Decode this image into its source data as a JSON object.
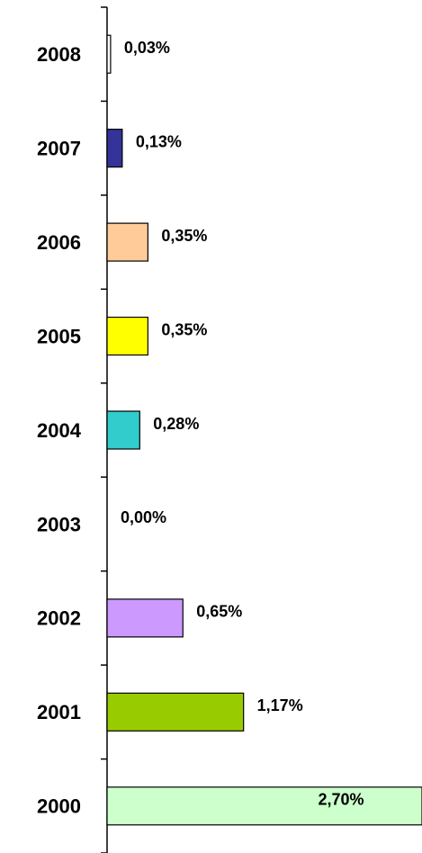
{
  "chart_data": {
    "type": "hbar",
    "categories": [
      "2008",
      "2007",
      "2006",
      "2005",
      "2004",
      "2003",
      "2002",
      "2001",
      "2000"
    ],
    "values": [
      0.03,
      0.13,
      0.35,
      0.35,
      0.28,
      0,
      0.65,
      1.17,
      2.7
    ],
    "value_labels": [
      "0,03%",
      "0,13%",
      "0,35%",
      "0,35%",
      "0,28%",
      "0,00%",
      "0,65%",
      "1,17%",
      "2,70%"
    ],
    "colors": [
      "#ffffff",
      "#333399",
      "#ffcc99",
      "#ffff00",
      "#33cccc",
      "#ffffff",
      "#cc99ff",
      "#99cc00",
      "#ccffcc"
    ],
    "xlim": [
      0,
      2.7
    ]
  }
}
